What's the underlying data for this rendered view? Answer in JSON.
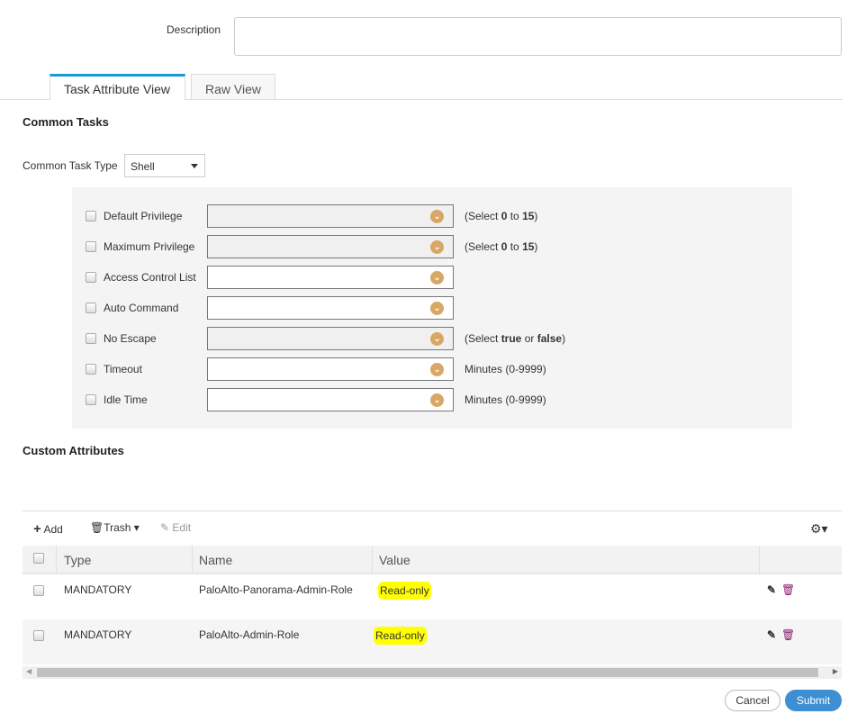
{
  "description": {
    "label": "Description",
    "value": ""
  },
  "tabs": [
    {
      "label": "Task Attribute View",
      "active": true
    },
    {
      "label": "Raw View",
      "active": false
    }
  ],
  "common_tasks": {
    "heading": "Common Tasks",
    "type_label": "Common Task Type",
    "type_value": "Shell",
    "fields": [
      {
        "label": "Default Privilege",
        "disabled": true,
        "hint_pre": "(Select ",
        "b1": "0",
        "mid": " to ",
        "b2": "15",
        "post": ")"
      },
      {
        "label": "Maximum Privilege",
        "disabled": true,
        "hint_pre": "(Select ",
        "b1": "0",
        "mid": " to ",
        "b2": "15",
        "post": ")"
      },
      {
        "label": "Access Control List",
        "disabled": false
      },
      {
        "label": "Auto Command",
        "disabled": false
      },
      {
        "label": "No Escape",
        "disabled": true,
        "hint_pre": "(Select ",
        "b1": "true",
        "mid": " or ",
        "b2": "false",
        "post": ")"
      },
      {
        "label": "Timeout",
        "disabled": false,
        "hint": "Minutes (0-9999)"
      },
      {
        "label": "Idle Time",
        "disabled": false,
        "hint": "Minutes (0-9999)"
      }
    ]
  },
  "custom": {
    "heading": "Custom Attributes",
    "toolbar": {
      "add": "Add",
      "trash": "Trash",
      "edit": "Edit"
    },
    "columns": [
      "Type",
      "Name",
      "Value"
    ],
    "rows": [
      {
        "type": "MANDATORY",
        "name": "PaloAlto-Panorama-Admin-Role",
        "value": "Read-only"
      },
      {
        "type": "MANDATORY",
        "name": "PaloAlto-Admin-Role",
        "value": "Read-only"
      }
    ]
  },
  "buttons": {
    "cancel": "Cancel",
    "submit": "Submit"
  },
  "colors": {
    "accent": "#1a9ad6",
    "submit": "#3d8fd1",
    "highlight": "#ffff00",
    "dropdown_icon": "#d9a765"
  }
}
